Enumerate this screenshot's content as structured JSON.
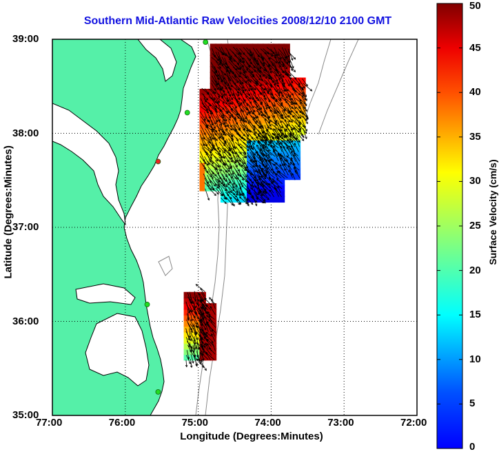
{
  "title": "Southern Mid-Atlantic Raw Velocities 2008/12/10 2100 GMT",
  "xlabel": "Longitude (Degrees:Minutes)",
  "ylabel": "Latitude (Degrees:Minutes)",
  "colorbar": {
    "label": "Surface Velocity (cm/s)",
    "range": [
      0,
      50
    ],
    "ticks": [
      "0",
      "5",
      "10",
      "15",
      "20",
      "25",
      "30",
      "35",
      "40",
      "45",
      "50"
    ],
    "colormap": "jet"
  },
  "x_axis": {
    "range": [
      -77,
      -72
    ],
    "ticks": [
      "77:00",
      "76:00",
      "75:00",
      "74:00",
      "73:00",
      "72:00"
    ]
  },
  "y_axis": {
    "range": [
      35,
      39
    ],
    "ticks": [
      "35:00",
      "36:00",
      "37:00",
      "38:00",
      "39:00"
    ]
  },
  "colors": {
    "title": "#1010e0",
    "land": "#55f0a8",
    "water": "#ffffff",
    "bathymetry": "#888888",
    "station_active": "#22dd22",
    "station_inactive": "#ee2222",
    "grid": "#000000"
  },
  "grid": "dotted",
  "stations": [
    {
      "lon": -74.9,
      "lat": 38.97,
      "status": "active"
    },
    {
      "lon": -75.15,
      "lat": 38.22,
      "status": "active"
    },
    {
      "lon": -75.55,
      "lat": 37.7,
      "status": "inactive"
    },
    {
      "lon": -75.7,
      "lat": 36.18,
      "status": "active"
    },
    {
      "lon": -75.55,
      "lat": 35.25,
      "status": "active"
    }
  ]
}
